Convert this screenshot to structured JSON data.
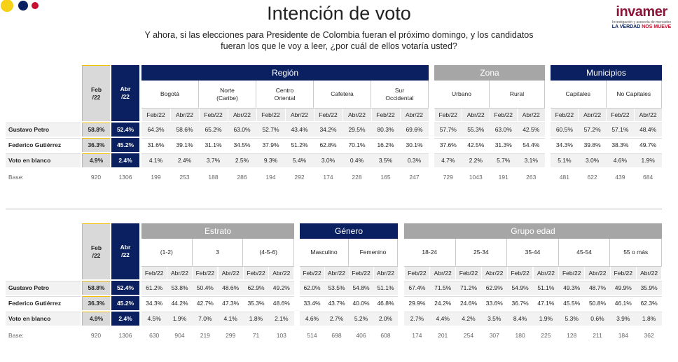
{
  "header": {
    "title": "Intención de voto",
    "question": "Y ahora, si las elecciones para Presidente de Colombia fueran el próximo domingo, y los candidatos\nfueran los que le voy a leer, ¿por cuál de ellos votaría usted?",
    "logo": {
      "brand": "invamer",
      "tagline": "Investigación y asesoría de mercados",
      "slogan_a": "LA VERDAD",
      "slogan_b": "NOS MUEVE"
    }
  },
  "tables": [
    {
      "total_headers": [
        "Feb\n/22",
        "Abr\n/22"
      ],
      "period_labels": [
        "Feb/22",
        "Abr/22"
      ],
      "groups": [
        {
          "name": "Región",
          "subgroups": [
            "Bogotá",
            "Norte\n(Caribe)",
            "Centro\nOriental",
            "Cafetera",
            "Sur\nOccidental"
          ]
        },
        {
          "name": "Zona",
          "subgroups": [
            "Urbano",
            "Rural"
          ]
        },
        {
          "name": "Municipios",
          "subgroups": [
            "Capitales",
            "No Capitales"
          ]
        }
      ],
      "rows": [
        {
          "label": "Gustavo Petro",
          "total": [
            "58.8%",
            "52.4%"
          ],
          "values": [
            "64.3%",
            "58.6%",
            "65.2%",
            "63.0%",
            "52.7%",
            "43.4%",
            "34.2%",
            "29.5%",
            "80.3%",
            "69.6%",
            "57.7%",
            "55.3%",
            "63.0%",
            "42.5%",
            "60.5%",
            "57.2%",
            "57.1%",
            "48.4%"
          ]
        },
        {
          "label": "Federico Gutiérrez",
          "total": [
            "36.3%",
            "45.2%"
          ],
          "values": [
            "31.6%",
            "39.1%",
            "31.1%",
            "34.5%",
            "37.9%",
            "51.2%",
            "62.8%",
            "70.1%",
            "16.2%",
            "30.1%",
            "37.6%",
            "42.5%",
            "31.3%",
            "54.4%",
            "34.3%",
            "39.8%",
            "38.3%",
            "49.7%"
          ]
        },
        {
          "label": "Voto en blanco",
          "total": [
            "4.9%",
            "2.4%"
          ],
          "values": [
            "4.1%",
            "2.4%",
            "3.7%",
            "2.5%",
            "9.3%",
            "5.4%",
            "3.0%",
            "0.4%",
            "3.5%",
            "0.3%",
            "4.7%",
            "2.2%",
            "5.7%",
            "3.1%",
            "5.1%",
            "3.0%",
            "4.6%",
            "1.9%"
          ]
        }
      ],
      "base": {
        "label": "Base:",
        "total": [
          920,
          1306
        ],
        "values": [
          199,
          253,
          188,
          286,
          194,
          292,
          174,
          228,
          165,
          247,
          729,
          1043,
          191,
          263,
          481,
          622,
          439,
          684
        ]
      }
    },
    {
      "total_headers": [
        "Feb\n/22",
        "Abr\n/22"
      ],
      "period_labels": [
        "Feb/22",
        "Abr/22"
      ],
      "groups": [
        {
          "name": "Estrato",
          "subgroups": [
            "(1-2)",
            "3",
            "(4-5-6)"
          ]
        },
        {
          "name": "Género",
          "subgroups": [
            "Masculino",
            "Femenino"
          ]
        },
        {
          "name": "Grupo edad",
          "subgroups": [
            "18-24",
            "25-34",
            "35-44",
            "45-54",
            "55 o más"
          ]
        }
      ],
      "rows": [
        {
          "label": "Gustavo Petro",
          "total": [
            "58.8%",
            "52.4%"
          ],
          "values": [
            "61.2%",
            "53.8%",
            "50.4%",
            "48.6%",
            "62.9%",
            "49.2%",
            "62.0%",
            "53.5%",
            "54.8%",
            "51.1%",
            "67.4%",
            "71.5%",
            "71.2%",
            "62.9%",
            "54.9%",
            "51.1%",
            "49.3%",
            "48.7%",
            "49.9%",
            "35.9%"
          ]
        },
        {
          "label": "Federico Gutiérrez",
          "total": [
            "36.3%",
            "45.2%"
          ],
          "values": [
            "34.3%",
            "44.2%",
            "42.7%",
            "47.3%",
            "35.3%",
            "48.6%",
            "33.4%",
            "43.7%",
            "40.0%",
            "46.8%",
            "29.9%",
            "24.2%",
            "24.6%",
            "33.6%",
            "36.7%",
            "47.1%",
            "45.5%",
            "50.8%",
            "46.1%",
            "62.3%"
          ]
        },
        {
          "label": "Voto en blanco",
          "total": [
            "4.9%",
            "2.4%"
          ],
          "values": [
            "4.5%",
            "1.9%",
            "7.0%",
            "4.1%",
            "1.8%",
            "2.1%",
            "4.6%",
            "2.7%",
            "5.2%",
            "2.0%",
            "2.7%",
            "4.4%",
            "4.2%",
            "3.5%",
            "8.4%",
            "1.9%",
            "5.3%",
            "0.6%",
            "3.9%",
            "1.8%"
          ]
        }
      ],
      "base": {
        "label": "Base:",
        "total": [
          920,
          1306
        ],
        "values": [
          630,
          904,
          219,
          299,
          71,
          103,
          514,
          698,
          406,
          608,
          174,
          201,
          254,
          307,
          180,
          225,
          128,
          211,
          184,
          362
        ]
      }
    }
  ]
}
